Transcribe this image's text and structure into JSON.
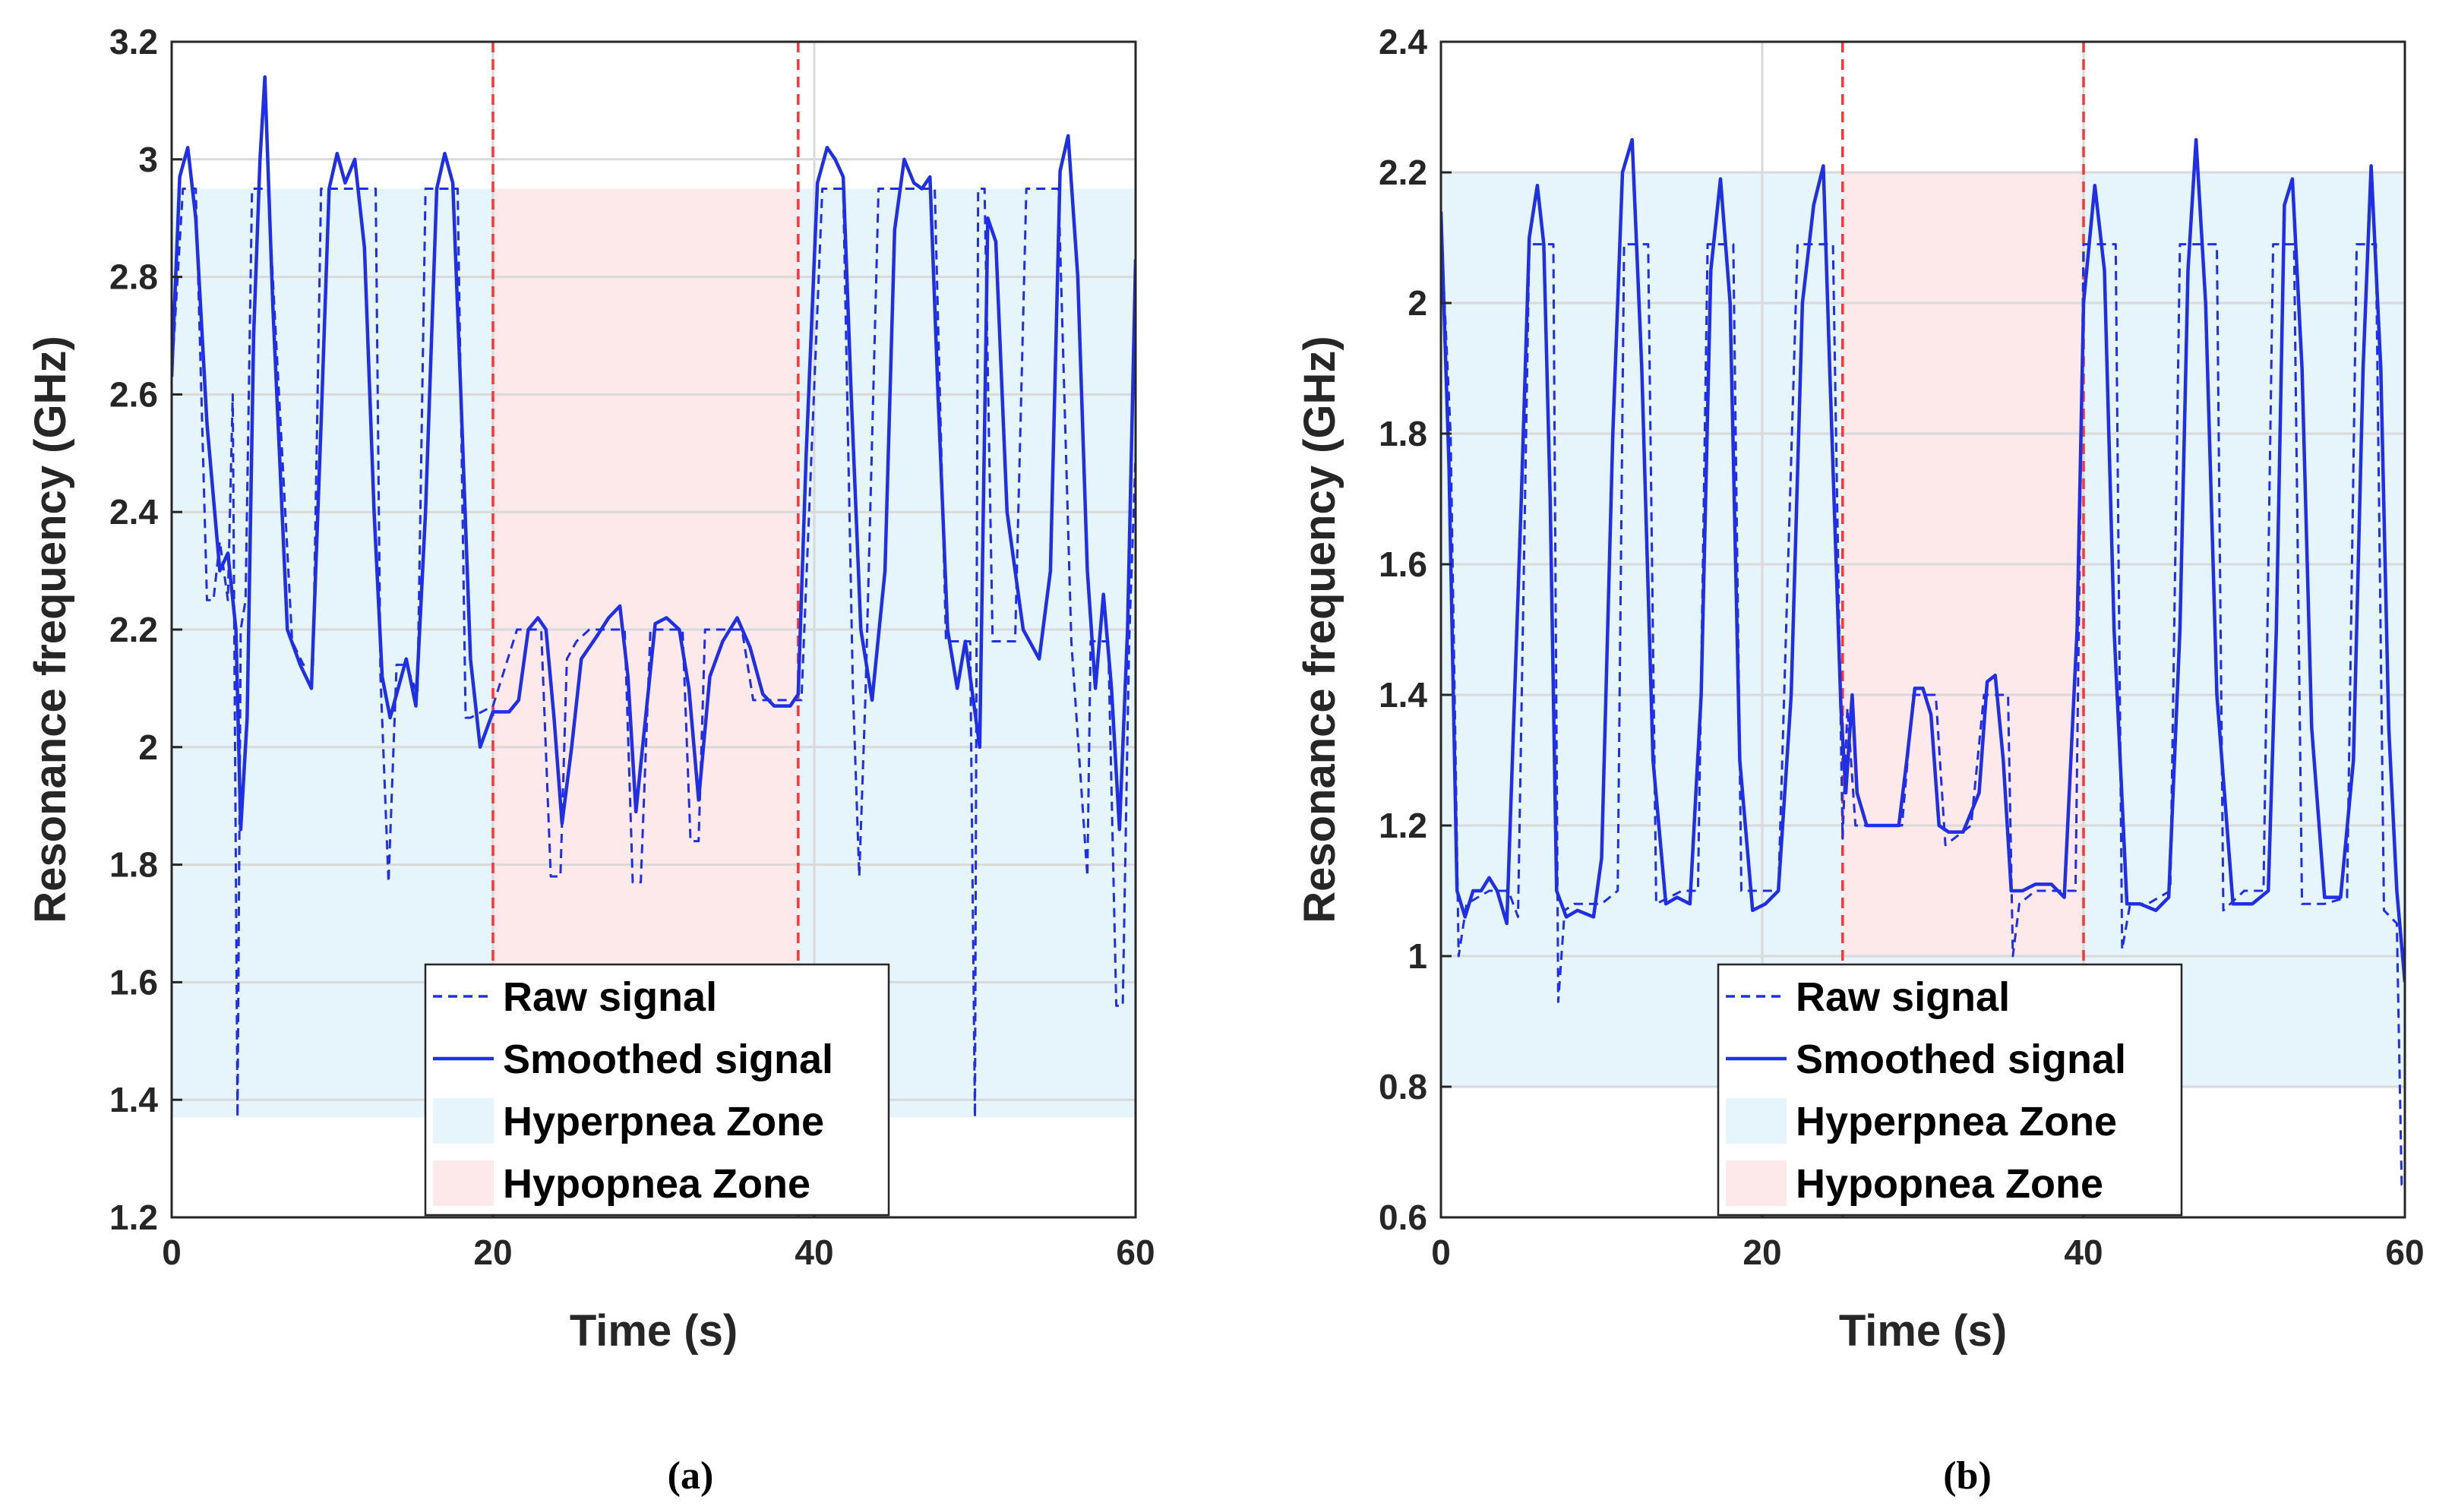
{
  "colors": {
    "signal": "#1f2fe6",
    "hyper_fill": "#e6f5fb",
    "hypo_fill": "#fde8ea",
    "boundary_line": "#ff3333",
    "grid": "#d9d9d9",
    "axis": "#262626"
  },
  "chart_data": [
    {
      "id": "a",
      "type": "line",
      "caption": "(a)",
      "xlabel": "Time (s)",
      "ylabel": "Resonance frequency (GHz)",
      "xlim": [
        0,
        60
      ],
      "ylim": [
        1.2,
        3.2
      ],
      "xticks": [
        0,
        20,
        40,
        60
      ],
      "yticks": [
        1.2,
        1.4,
        1.6,
        1.8,
        2,
        2.2,
        2.4,
        2.6,
        2.8,
        3,
        3.2
      ],
      "grid": true,
      "legend": {
        "position": "bottom-center",
        "entries": [
          "Raw signal",
          "Smoothed signal",
          "Hyperpnea Zone",
          "Hypopnea Zone"
        ]
      },
      "zones": {
        "hyperpnea": {
          "y": [
            1.37,
            2.95
          ]
        },
        "hypopnea": {
          "x": [
            20,
            39
          ],
          "y": [
            2.95,
            1.6
          ]
        }
      },
      "boundaries": [
        20,
        39
      ],
      "series": [
        {
          "name": "Smoothed signal",
          "style": "solid",
          "x": [
            0,
            0.5,
            1.0,
            1.5,
            2.2,
            3.0,
            3.5,
            4.0,
            4.3,
            4.7,
            5.1,
            5.5,
            5.8,
            6.3,
            7.2,
            8.0,
            8.7,
            9.3,
            9.8,
            10.3,
            10.8,
            11.4,
            12.0,
            12.6,
            13.1,
            13.6,
            14.1,
            14.6,
            15.2,
            15.8,
            16.5,
            17.0,
            17.5,
            18.0,
            18.6,
            19.2,
            20.0,
            21.0,
            21.6,
            22.2,
            22.8,
            23.3,
            23.8,
            24.3,
            24.9,
            25.5,
            26.5,
            27.2,
            27.9,
            28.4,
            28.9,
            29.5,
            30.1,
            30.8,
            31.6,
            32.2,
            32.8,
            33.5,
            34.3,
            35.2,
            36.0,
            36.8,
            37.5,
            38.5,
            39.0,
            39.5,
            40.2,
            40.8,
            41.3,
            41.8,
            42.3,
            42.9,
            43.6,
            44.4,
            45.0,
            45.6,
            46.2,
            46.7,
            47.2,
            47.7,
            48.3,
            48.9,
            49.4,
            49.8,
            50.3,
            50.8,
            51.3,
            52.0,
            53.0,
            54.0,
            54.7,
            55.3,
            55.8,
            56.4,
            57.0,
            57.5,
            58.0,
            58.5,
            59.0,
            59.5,
            60.0
          ],
          "y": [
            2.63,
            2.97,
            3.02,
            2.9,
            2.55,
            2.3,
            2.33,
            2.2,
            1.86,
            2.05,
            2.7,
            3.0,
            3.14,
            2.75,
            2.2,
            2.14,
            2.1,
            2.55,
            2.95,
            3.01,
            2.96,
            3.0,
            2.85,
            2.4,
            2.12,
            2.05,
            2.1,
            2.15,
            2.07,
            2.4,
            2.95,
            3.01,
            2.96,
            2.6,
            2.15,
            2.0,
            2.06,
            2.06,
            2.08,
            2.2,
            2.22,
            2.2,
            2.05,
            1.87,
            2.0,
            2.15,
            2.19,
            2.22,
            2.24,
            2.12,
            1.89,
            2.05,
            2.21,
            2.22,
            2.2,
            2.1,
            1.91,
            2.12,
            2.18,
            2.22,
            2.17,
            2.09,
            2.07,
            2.07,
            2.09,
            2.5,
            2.96,
            3.02,
            3.0,
            2.97,
            2.6,
            2.2,
            2.08,
            2.3,
            2.88,
            3.0,
            2.96,
            2.95,
            2.97,
            2.6,
            2.2,
            2.1,
            2.18,
            2.1,
            2.0,
            2.9,
            2.86,
            2.4,
            2.2,
            2.15,
            2.3,
            2.98,
            3.04,
            2.8,
            2.3,
            2.1,
            2.26,
            2.1,
            1.86,
            2.2,
            2.83
          ]
        },
        {
          "name": "Raw signal",
          "style": "dashed",
          "x": [
            0,
            0.7,
            1.5,
            2.2,
            2.6,
            3.0,
            3.5,
            3.8,
            4.1,
            4.3,
            4.6,
            5.0,
            5.6,
            6.0,
            7.5,
            8.2,
            8.8,
            9.3,
            9.7,
            11.5,
            12.0,
            12.7,
            13.0,
            13.5,
            14.0,
            14.6,
            15.3,
            15.8,
            16.2,
            17.8,
            18.3,
            18.6,
            20.0,
            21.5,
            22.0,
            23.0,
            23.6,
            24.2,
            24.6,
            25.2,
            26.0,
            27.5,
            28.2,
            28.7,
            29.2,
            29.8,
            30.3,
            31.8,
            32.3,
            32.8,
            33.2,
            33.8,
            34.3,
            35.5,
            36.2,
            37.0,
            38.8,
            39.2,
            40.5,
            41.8,
            42.4,
            42.8,
            43.2,
            44.0,
            44.6,
            46.0,
            46.8,
            47.5,
            48.2,
            49.7,
            50.0,
            50.2,
            50.6,
            51.1,
            51.3,
            52.5,
            53.2,
            54.3,
            55.2,
            56.0,
            57.0,
            57.2,
            57.8,
            58.3,
            58.8,
            59.2,
            59.6,
            60.0
          ],
          "y": [
            2.63,
            2.95,
            2.95,
            2.25,
            2.25,
            2.35,
            2.25,
            2.6,
            1.37,
            2.2,
            2.25,
            2.95,
            2.95,
            2.95,
            2.18,
            2.14,
            2.14,
            2.95,
            2.95,
            2.95,
            2.95,
            2.95,
            2.12,
            1.77,
            2.14,
            2.14,
            2.09,
            2.95,
            2.95,
            2.95,
            2.05,
            2.05,
            2.07,
            2.2,
            2.2,
            2.2,
            1.78,
            1.78,
            2.15,
            2.18,
            2.2,
            2.2,
            2.2,
            1.77,
            1.77,
            2.2,
            2.2,
            2.2,
            1.84,
            1.84,
            2.2,
            2.2,
            2.2,
            2.2,
            2.08,
            2.08,
            2.08,
            2.08,
            2.95,
            2.95,
            2.1,
            1.78,
            2.1,
            2.95,
            2.95,
            2.95,
            2.95,
            2.95,
            2.18,
            2.18,
            1.37,
            2.95,
            2.95,
            2.18,
            2.18,
            2.18,
            2.95,
            2.95,
            2.95,
            2.18,
            1.78,
            2.18,
            2.18,
            2.18,
            1.56,
            1.56,
            2.18,
            2.5
          ]
        }
      ]
    },
    {
      "id": "b",
      "type": "line",
      "caption": "(b)",
      "xlabel": "Time (s)",
      "ylabel": "Resonance frequency (GHz)",
      "xlim": [
        0,
        60
      ],
      "ylim": [
        0.6,
        2.4
      ],
      "xticks": [
        0,
        20,
        40,
        60
      ],
      "yticks": [
        0.6,
        0.8,
        1,
        1.2,
        1.4,
        1.6,
        1.8,
        2,
        2.2,
        2.4
      ],
      "grid": true,
      "legend": {
        "position": "bottom-center",
        "entries": [
          "Raw signal",
          "Smoothed signal",
          "Hyperpnea Zone",
          "Hypopnea Zone"
        ]
      },
      "zones": {
        "hyperpnea": {
          "y": [
            0.8,
            2.2
          ]
        },
        "hypopnea": {
          "x": [
            25,
            40
          ],
          "y": [
            2.2,
            1.0
          ]
        }
      },
      "boundaries": [
        25,
        40
      ],
      "series": [
        {
          "name": "Smoothed signal",
          "style": "solid",
          "x": [
            0,
            0.5,
            1.0,
            1.5,
            2.0,
            2.5,
            3.0,
            3.5,
            4.1,
            5.0,
            5.5,
            6.0,
            6.4,
            6.8,
            7.2,
            7.8,
            8.5,
            9.5,
            10.0,
            10.7,
            11.3,
            11.9,
            12.5,
            13.2,
            14.0,
            14.7,
            15.5,
            16.2,
            16.8,
            17.4,
            18.0,
            18.6,
            19.4,
            20.2,
            21.0,
            21.8,
            22.5,
            23.2,
            23.8,
            24.2,
            24.9,
            25.2,
            25.6,
            25.9,
            26.5,
            27.5,
            28.5,
            29.0,
            29.5,
            30.0,
            30.5,
            31.0,
            31.6,
            32.5,
            33.5,
            34.0,
            34.5,
            35.0,
            35.5,
            36.2,
            37.0,
            38.0,
            38.8,
            39.6,
            40.0,
            40.7,
            41.3,
            41.9,
            42.7,
            43.5,
            44.5,
            45.3,
            46.0,
            46.5,
            47.0,
            47.6,
            48.3,
            49.3,
            50.5,
            51.5,
            52.0,
            52.5,
            53.0,
            53.6,
            54.2,
            55.0,
            56.0,
            56.8,
            57.4,
            57.9,
            58.5,
            59.0,
            59.5,
            60.0
          ],
          "y": [
            2.14,
            1.75,
            1.1,
            1.06,
            1.1,
            1.1,
            1.12,
            1.1,
            1.05,
            1.7,
            2.1,
            2.18,
            2.09,
            1.7,
            1.1,
            1.06,
            1.07,
            1.06,
            1.15,
            1.8,
            2.2,
            2.25,
            1.9,
            1.3,
            1.08,
            1.09,
            1.08,
            1.4,
            2.05,
            2.19,
            2.0,
            1.3,
            1.07,
            1.08,
            1.1,
            1.4,
            2.0,
            2.15,
            2.21,
            1.9,
            1.38,
            1.25,
            1.4,
            1.25,
            1.2,
            1.2,
            1.2,
            1.3,
            1.41,
            1.41,
            1.37,
            1.2,
            1.19,
            1.19,
            1.25,
            1.42,
            1.43,
            1.3,
            1.1,
            1.1,
            1.11,
            1.11,
            1.09,
            1.5,
            2.0,
            2.18,
            2.05,
            1.5,
            1.08,
            1.08,
            1.07,
            1.09,
            1.5,
            2.05,
            2.25,
            2.0,
            1.4,
            1.08,
            1.08,
            1.1,
            1.5,
            2.15,
            2.19,
            1.9,
            1.35,
            1.09,
            1.09,
            1.3,
            1.9,
            2.21,
            1.9,
            1.35,
            1.1,
            0.96
          ]
        },
        {
          "name": "Raw signal",
          "style": "dashed",
          "x": [
            0,
            0.6,
            1.1,
            1.6,
            3.0,
            4.2,
            4.8,
            5.5,
            6.6,
            7.0,
            7.3,
            7.7,
            8.3,
            10.0,
            11.0,
            11.4,
            12.6,
            12.9,
            13.4,
            15.0,
            16.0,
            16.6,
            17.9,
            18.2,
            18.7,
            21.0,
            22.2,
            22.8,
            24.0,
            24.4,
            25.0,
            25.3,
            25.8,
            28.0,
            28.7,
            29.4,
            30.2,
            30.8,
            31.4,
            33.0,
            33.8,
            34.3,
            35.3,
            35.6,
            36.0,
            37.0,
            39.5,
            40.0,
            40.5,
            42.0,
            42.4,
            42.9,
            44.0,
            45.4,
            46.0,
            48.0,
            48.3,
            48.7,
            50.0,
            51.2,
            51.8,
            52.8,
            53.1,
            53.6,
            55.0,
            56.4,
            57.0,
            57.9,
            58.2,
            58.7,
            59.5,
            59.8,
            60.0
          ],
          "y": [
            2.12,
            1.8,
            1.0,
            1.08,
            1.1,
            1.1,
            1.06,
            2.09,
            2.09,
            2.09,
            0.93,
            1.07,
            1.08,
            1.08,
            1.1,
            2.09,
            2.09,
            2.09,
            1.08,
            1.1,
            1.1,
            2.09,
            2.09,
            2.09,
            1.1,
            1.1,
            2.09,
            2.09,
            2.09,
            2.09,
            1.18,
            1.38,
            1.2,
            1.2,
            1.2,
            1.4,
            1.4,
            1.4,
            1.17,
            1.2,
            1.4,
            1.4,
            1.4,
            1.0,
            1.08,
            1.1,
            1.1,
            2.09,
            2.09,
            2.09,
            1.01,
            1.08,
            1.08,
            1.1,
            2.09,
            2.09,
            2.09,
            1.07,
            1.1,
            1.1,
            2.09,
            2.09,
            2.09,
            1.08,
            1.08,
            1.09,
            2.09,
            2.09,
            2.09,
            1.07,
            1.05,
            0.65,
            0.65
          ]
        }
      ]
    }
  ]
}
